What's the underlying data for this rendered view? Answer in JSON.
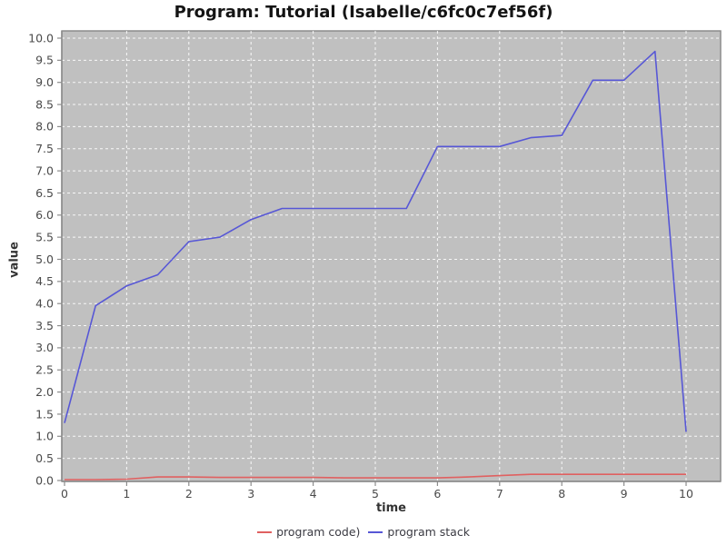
{
  "chart_data": {
    "type": "line",
    "title": "Program: Tutorial (Isabelle/c6fc0c7ef56f)",
    "xlabel": "time",
    "ylabel": "value",
    "xlim": [
      0,
      10
    ],
    "ylim": [
      0.0,
      10.0
    ],
    "x_tick_step": 1,
    "y_tick_step": 0.5,
    "grid": true,
    "legend_position": "bottom",
    "x": [
      0,
      0.5,
      1,
      1.5,
      2,
      2.5,
      3,
      3.5,
      4,
      4.5,
      5,
      5.5,
      6,
      6.5,
      7,
      7.5,
      8,
      8.5,
      9,
      9.5,
      10
    ],
    "series": [
      {
        "name": "program code)",
        "color": "#e06060",
        "values": [
          0.02,
          0.02,
          0.03,
          0.08,
          0.08,
          0.07,
          0.07,
          0.07,
          0.07,
          0.06,
          0.06,
          0.06,
          0.06,
          0.08,
          0.11,
          0.14,
          0.14,
          0.14,
          0.14,
          0.14,
          0.14
        ]
      },
      {
        "name": "program stack",
        "color": "#5757d6",
        "values": [
          1.3,
          3.95,
          4.4,
          4.65,
          5.4,
          5.5,
          5.9,
          6.15,
          6.15,
          6.15,
          6.15,
          6.15,
          7.55,
          7.55,
          7.55,
          7.75,
          7.8,
          9.05,
          9.05,
          9.7,
          1.1
        ]
      }
    ]
  },
  "colors": {
    "plot_background": "#c0c0c0",
    "plot_border": "#878787",
    "gridline": "#ffffff",
    "axis": "#8c8c8c",
    "tick_label": "#4a4a4a",
    "legend_text": "#3a3a42",
    "title_text": "#141414"
  }
}
